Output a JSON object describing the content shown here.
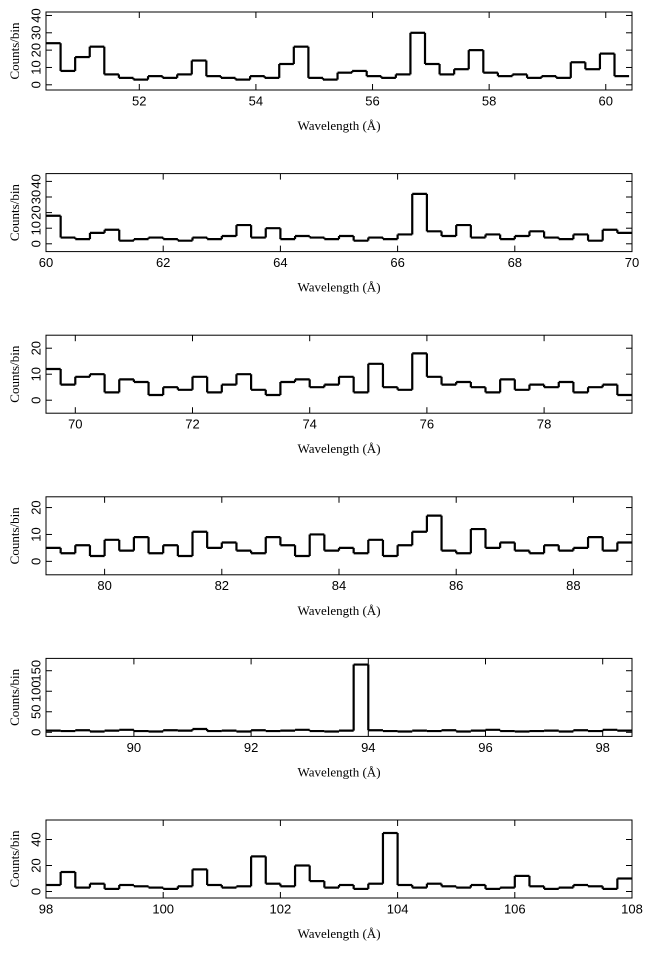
{
  "chart_data": [
    {
      "type": "step",
      "xlabel": "Wavelength (Å)",
      "ylabel": "Counts/bin",
      "color": "#000000",
      "x": [
        50.4,
        50.65,
        50.9,
        51.15,
        51.4,
        51.65,
        51.9,
        52.15,
        52.4,
        52.65,
        52.9,
        53.15,
        53.4,
        53.65,
        53.9,
        54.15,
        54.4,
        54.65,
        54.9,
        55.15,
        55.4,
        55.65,
        55.9,
        56.15,
        56.4,
        56.65,
        56.9,
        57.15,
        57.4,
        57.65,
        57.9,
        58.15,
        58.4,
        58.65,
        58.9,
        59.15,
        59.4,
        59.65,
        59.9,
        60.15
      ],
      "values": [
        24,
        8,
        16,
        22,
        6,
        4,
        3,
        5,
        4,
        6,
        14,
        5,
        4,
        3,
        5,
        4,
        12,
        22,
        4,
        3,
        7,
        8,
        5,
        4,
        6,
        30,
        12,
        6,
        9,
        20,
        7,
        5,
        6,
        4,
        5,
        4,
        13,
        9,
        18,
        5
      ],
      "xlim": [
        50.4,
        60.45
      ],
      "ylim": [
        -3,
        42
      ],
      "xticks": [
        52,
        54,
        56,
        58,
        60
      ],
      "yticks": [
        0,
        10,
        20,
        30,
        40
      ]
    },
    {
      "type": "step",
      "xlabel": "Wavelength (Å)",
      "ylabel": "Counts/bin",
      "color": "#000000",
      "x": [
        60,
        60.25,
        60.5,
        60.75,
        61,
        61.25,
        61.5,
        61.75,
        62,
        62.25,
        62.5,
        62.75,
        63,
        63.25,
        63.5,
        63.75,
        64,
        64.25,
        64.5,
        64.75,
        65,
        65.25,
        65.5,
        65.75,
        66,
        66.25,
        66.5,
        66.75,
        67,
        67.25,
        67.5,
        67.75,
        68,
        68.25,
        68.5,
        68.75,
        69,
        69.25,
        69.5,
        69.75
      ],
      "values": [
        18,
        4,
        3,
        7,
        9,
        2,
        3,
        4,
        3,
        2,
        4,
        3,
        5,
        12,
        4,
        10,
        3,
        5,
        4,
        3,
        5,
        2,
        4,
        3,
        6,
        32,
        8,
        5,
        12,
        4,
        6,
        3,
        5,
        8,
        4,
        3,
        6,
        2,
        9,
        7
      ],
      "xlim": [
        60,
        70
      ],
      "ylim": [
        -5,
        45
      ],
      "xticks": [
        60,
        62,
        64,
        66,
        68,
        70
      ],
      "yticks": [
        0,
        10,
        20,
        30,
        40
      ]
    },
    {
      "type": "step",
      "xlabel": "Wavelength (Å)",
      "ylabel": "Counts/bin",
      "color": "#000000",
      "x": [
        69.5,
        69.75,
        70,
        70.25,
        70.5,
        70.75,
        71,
        71.25,
        71.5,
        71.75,
        72,
        72.25,
        72.5,
        72.75,
        73,
        73.25,
        73.5,
        73.75,
        74,
        74.25,
        74.5,
        74.75,
        75,
        75.25,
        75.5,
        75.75,
        76,
        76.25,
        76.5,
        76.75,
        77,
        77.25,
        77.5,
        77.75,
        78,
        78.25,
        78.5,
        78.75,
        79,
        79.25
      ],
      "values": [
        12,
        6,
        9,
        10,
        3,
        8,
        7,
        2,
        5,
        4,
        9,
        3,
        6,
        10,
        4,
        2,
        7,
        8,
        5,
        6,
        9,
        3,
        14,
        5,
        4,
        18,
        9,
        6,
        7,
        5,
        3,
        8,
        4,
        6,
        5,
        7,
        3,
        5,
        6,
        2
      ],
      "xlim": [
        69.5,
        79.5
      ],
      "ylim": [
        -5,
        25
      ],
      "xticks": [
        70,
        72,
        74,
        76,
        78
      ],
      "yticks": [
        0,
        10,
        20
      ]
    },
    {
      "type": "step",
      "xlabel": "Wavelength (Å)",
      "ylabel": "Counts/bin",
      "color": "#000000",
      "x": [
        79,
        79.25,
        79.5,
        79.75,
        80,
        80.25,
        80.5,
        80.75,
        81,
        81.25,
        81.5,
        81.75,
        82,
        82.25,
        82.5,
        82.75,
        83,
        83.25,
        83.5,
        83.75,
        84,
        84.25,
        84.5,
        84.75,
        85,
        85.25,
        85.5,
        85.75,
        86,
        86.25,
        86.5,
        86.75,
        87,
        87.25,
        87.5,
        87.75,
        88,
        88.25,
        88.5,
        88.75
      ],
      "values": [
        5,
        3,
        6,
        2,
        8,
        4,
        9,
        3,
        6,
        2,
        11,
        5,
        7,
        4,
        3,
        9,
        6,
        2,
        10,
        4,
        5,
        3,
        8,
        2,
        6,
        11,
        17,
        4,
        3,
        12,
        5,
        7,
        4,
        3,
        6,
        4,
        5,
        9,
        4,
        7
      ],
      "xlim": [
        79,
        89
      ],
      "ylim": [
        -5,
        24
      ],
      "xticks": [
        80,
        82,
        84,
        86,
        88
      ],
      "yticks": [
        0,
        10,
        20
      ]
    },
    {
      "type": "step",
      "xlabel": "Wavelength (Å)",
      "ylabel": "Counts/bin",
      "color": "#000000",
      "x": [
        88.5,
        88.75,
        89,
        89.25,
        89.5,
        89.75,
        90,
        90.25,
        90.5,
        90.75,
        91,
        91.25,
        91.5,
        91.75,
        92,
        92.25,
        92.5,
        92.75,
        93,
        93.25,
        93.5,
        93.75,
        94,
        94.25,
        94.5,
        94.75,
        95,
        95.25,
        95.5,
        95.75,
        96,
        96.25,
        96.5,
        96.75,
        97,
        97.25,
        97.5,
        97.75,
        98,
        98.25
      ],
      "values": [
        4,
        3,
        5,
        2,
        4,
        6,
        3,
        2,
        5,
        4,
        8,
        3,
        4,
        2,
        5,
        3,
        4,
        6,
        3,
        2,
        4,
        165,
        5,
        3,
        2,
        4,
        3,
        5,
        2,
        4,
        6,
        3,
        2,
        3,
        4,
        2,
        5,
        3,
        6,
        4
      ],
      "xlim": [
        88.5,
        98.5
      ],
      "ylim": [
        -10,
        180
      ],
      "xticks": [
        90,
        92,
        94,
        96,
        98
      ],
      "yticks": [
        0,
        50,
        100,
        150
      ]
    },
    {
      "type": "step",
      "xlabel": "Wavelength (Å)",
      "ylabel": "Counts/bin",
      "color": "#000000",
      "x": [
        98,
        98.25,
        98.5,
        98.75,
        99,
        99.25,
        99.5,
        99.75,
        100,
        100.25,
        100.5,
        100.75,
        101,
        101.25,
        101.5,
        101.75,
        102,
        102.25,
        102.5,
        102.75,
        103,
        103.25,
        103.5,
        103.75,
        104,
        104.25,
        104.5,
        104.75,
        105,
        105.25,
        105.5,
        105.75,
        106,
        106.25,
        106.5,
        106.75,
        107,
        107.25,
        107.5,
        107.75
      ],
      "values": [
        5,
        15,
        3,
        6,
        2,
        5,
        4,
        3,
        2,
        4,
        17,
        5,
        3,
        4,
        27,
        6,
        4,
        20,
        8,
        3,
        5,
        2,
        6,
        45,
        5,
        3,
        6,
        4,
        3,
        5,
        2,
        3,
        12,
        4,
        2,
        3,
        5,
        4,
        2,
        10
      ],
      "xlim": [
        98,
        108
      ],
      "ylim": [
        -5,
        55
      ],
      "xticks": [
        98,
        100,
        102,
        104,
        106,
        108
      ],
      "yticks": [
        0,
        20,
        40
      ]
    }
  ]
}
